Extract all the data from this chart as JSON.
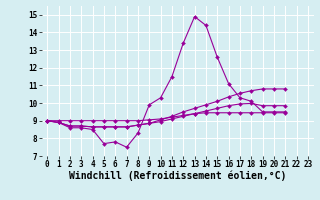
{
  "background_color": "#d6eef2",
  "line_color": "#990099",
  "grid_color": "#ffffff",
  "xlabel": "Windchill (Refroidissement éolien,°C)",
  "xlabel_fontsize": 7,
  "tick_fontsize": 6,
  "ylim": [
    7,
    15.5
  ],
  "xlim": [
    -0.5,
    23.5
  ],
  "yticks": [
    7,
    8,
    9,
    10,
    11,
    12,
    13,
    14,
    15
  ],
  "xticks": [
    0,
    1,
    2,
    3,
    4,
    5,
    6,
    7,
    8,
    9,
    10,
    11,
    12,
    13,
    14,
    15,
    16,
    17,
    18,
    19,
    20,
    21,
    22,
    23
  ],
  "lines": [
    {
      "x": [
        0,
        1,
        2,
        3,
        4,
        5,
        6,
        7,
        8,
        9,
        10,
        11,
        12,
        13,
        14,
        15,
        16,
        17,
        18,
        19,
        20,
        21,
        22,
        23
      ],
      "y": [
        9.0,
        8.9,
        8.6,
        8.6,
        8.5,
        7.7,
        7.8,
        7.5,
        8.3,
        9.9,
        10.3,
        11.5,
        13.4,
        14.9,
        14.4,
        12.6,
        11.1,
        10.3,
        10.1,
        9.5,
        9.5,
        9.5,
        null,
        null
      ],
      "marker": "D",
      "markersize": 2.0,
      "linewidth": 0.8
    },
    {
      "x": [
        0,
        1,
        2,
        3,
        4,
        5,
        6,
        7,
        8,
        9,
        10,
        11,
        12,
        13,
        14,
        15,
        16,
        17,
        18,
        19,
        20,
        21,
        22,
        23
      ],
      "y": [
        9.0,
        8.9,
        8.7,
        8.7,
        8.65,
        8.65,
        8.65,
        8.65,
        8.75,
        8.85,
        9.05,
        9.25,
        9.5,
        9.7,
        9.9,
        10.1,
        10.35,
        10.55,
        10.7,
        10.8,
        10.8,
        10.8,
        null,
        null
      ],
      "marker": "D",
      "markersize": 2.0,
      "linewidth": 0.8
    },
    {
      "x": [
        0,
        1,
        2,
        3,
        4,
        5,
        6,
        7,
        8,
        9,
        10,
        11,
        12,
        13,
        14,
        15,
        16,
        17,
        18,
        19,
        20,
        21,
        22,
        23
      ],
      "y": [
        9.0,
        8.9,
        8.7,
        8.7,
        8.65,
        8.65,
        8.65,
        8.65,
        8.75,
        8.85,
        8.95,
        9.1,
        9.25,
        9.4,
        9.55,
        9.7,
        9.85,
        9.95,
        9.98,
        9.85,
        9.85,
        9.85,
        null,
        null
      ],
      "marker": "D",
      "markersize": 2.0,
      "linewidth": 0.8
    },
    {
      "x": [
        0,
        1,
        2,
        3,
        4,
        5,
        6,
        7,
        8,
        9,
        10,
        11,
        12,
        13,
        14,
        15,
        16,
        17,
        18,
        19,
        20,
        21,
        22,
        23
      ],
      "y": [
        9.0,
        9.0,
        9.0,
        9.0,
        9.0,
        9.0,
        9.0,
        9.0,
        9.0,
        9.05,
        9.1,
        9.2,
        9.3,
        9.4,
        9.45,
        9.45,
        9.45,
        9.45,
        9.45,
        9.45,
        9.45,
        9.45,
        null,
        null
      ],
      "marker": "D",
      "markersize": 2.0,
      "linewidth": 0.8
    }
  ]
}
